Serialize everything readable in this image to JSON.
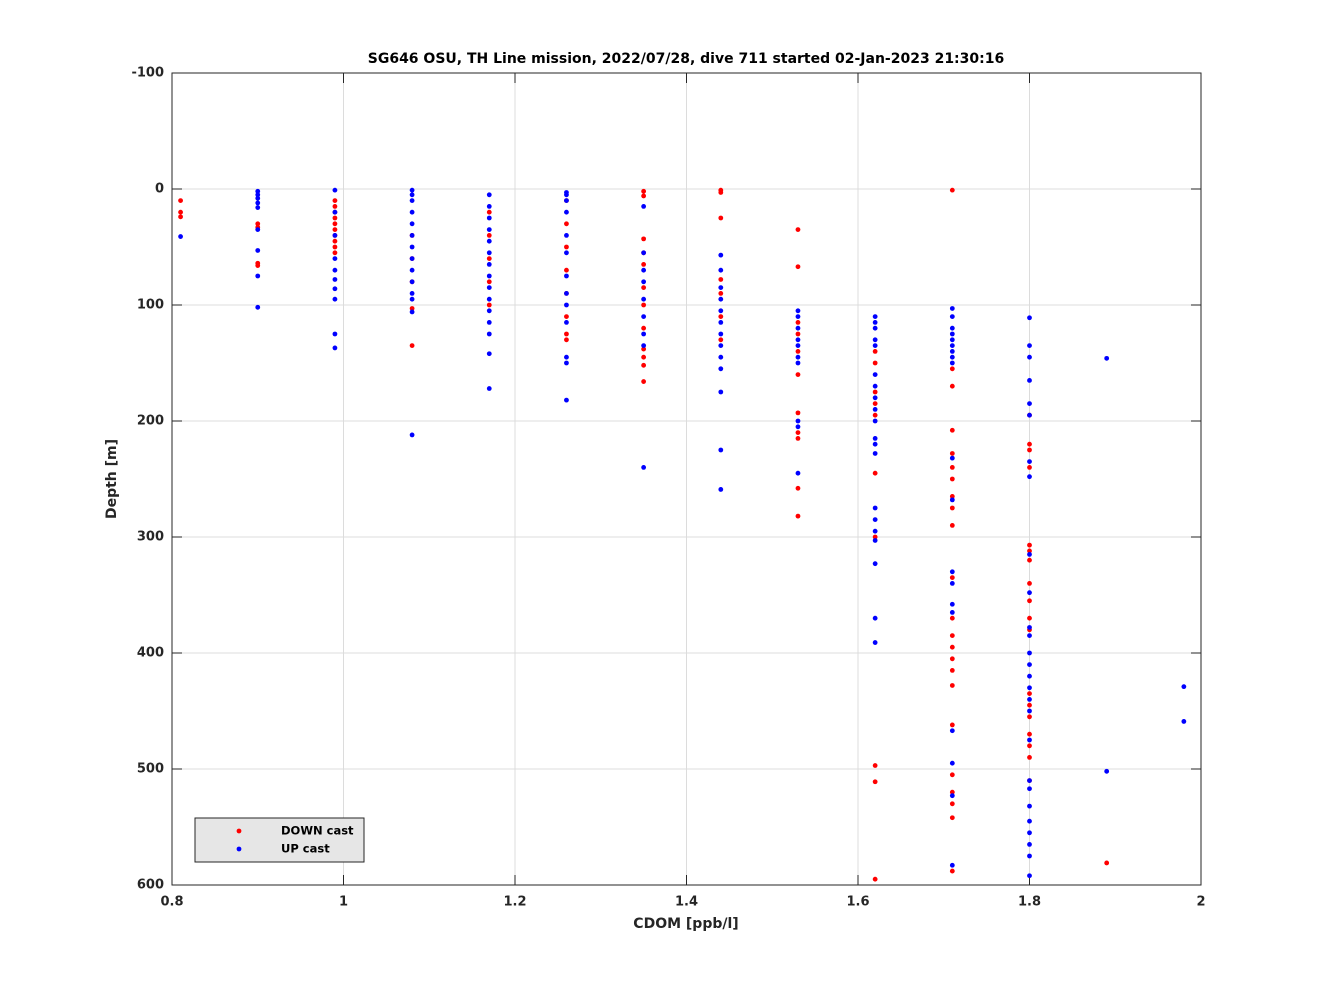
{
  "chart_data": {
    "type": "scatter",
    "title": "SG646 OSU, TH Line mission, 2022/07/28, dive 711 started 02-Jan-2023 21:30:16",
    "x_label": "CDOM [ppb/l]",
    "y_label": "Depth [m]",
    "xlim": [
      0.8,
      2
    ],
    "xticks": [
      0.8,
      1,
      1.2,
      1.4,
      1.6,
      1.8,
      2
    ],
    "ylim": [
      -100,
      600
    ],
    "yticks": [
      -100,
      0,
      100,
      200,
      300,
      400,
      500,
      600
    ],
    "y_reversed": true,
    "grid": true,
    "legend": "lower left",
    "series": [
      {
        "name": "DOWN cast",
        "color": "#ff0000",
        "x": [
          0.81,
          0.81,
          0.81,
          0.9,
          0.9,
          0.9,
          0.9,
          0.99,
          0.99,
          0.99,
          0.99,
          0.99,
          0.99,
          0.99,
          0.99,
          0.99,
          0.99,
          1.08,
          1.08,
          1.08,
          1.08,
          1.08,
          1.17,
          1.17,
          1.17,
          1.17,
          1.17,
          1.26,
          1.26,
          1.26,
          1.26,
          1.26,
          1.26,
          1.26,
          1.26,
          1.35,
          1.35,
          1.35,
          1.35,
          1.35,
          1.35,
          1.35,
          1.35,
          1.35,
          1.35,
          1.35,
          1.35,
          1.44,
          1.44,
          1.44,
          1.44,
          1.44,
          1.44,
          1.44,
          1.53,
          1.53,
          1.53,
          1.53,
          1.53,
          1.53,
          1.53,
          1.53,
          1.53,
          1.53,
          1.53,
          1.62,
          1.62,
          1.62,
          1.62,
          1.62,
          1.62,
          1.62,
          1.62,
          1.62,
          1.62,
          1.71,
          1.71,
          1.71,
          1.71,
          1.71,
          1.71,
          1.71,
          1.71,
          1.71,
          1.71,
          1.71,
          1.71,
          1.71,
          1.71,
          1.71,
          1.71,
          1.71,
          1.71,
          1.71,
          1.71,
          1.71,
          1.71,
          1.71,
          1.8,
          1.8,
          1.8,
          1.8,
          1.8,
          1.8,
          1.8,
          1.8,
          1.8,
          1.8,
          1.8,
          1.8,
          1.8,
          1.8,
          1.8,
          1.8,
          1.8,
          1.8,
          1.89
        ],
        "values": [
          10,
          20,
          24,
          30,
          33,
          64,
          66,
          10,
          15,
          20,
          25,
          30,
          35,
          40,
          45,
          50,
          55,
          40,
          60,
          80,
          103,
          135,
          20,
          40,
          60,
          80,
          100,
          10,
          30,
          50,
          70,
          90,
          110,
          125,
          130,
          2,
          6,
          43,
          55,
          65,
          85,
          100,
          120,
          138,
          145,
          152,
          166,
          1,
          3,
          25,
          78,
          90,
          110,
          130,
          35,
          67,
          115,
          125,
          140,
          160,
          193,
          210,
          215,
          258,
          282,
          140,
          150,
          175,
          185,
          195,
          245,
          300,
          497,
          511,
          595,
          1,
          155,
          170,
          208,
          228,
          240,
          250,
          265,
          275,
          290,
          335,
          370,
          385,
          395,
          405,
          415,
          428,
          462,
          505,
          520,
          530,
          542,
          588,
          195,
          220,
          225,
          240,
          307,
          312,
          320,
          340,
          355,
          370,
          380,
          435,
          445,
          455,
          470,
          480,
          490,
          510,
          581
        ]
      },
      {
        "name": "UP cast",
        "color": "#0000ff",
        "x": [
          0.81,
          0.9,
          0.9,
          0.9,
          0.9,
          0.9,
          0.9,
          0.9,
          0.9,
          0.9,
          0.99,
          0.99,
          0.99,
          0.99,
          0.99,
          0.99,
          0.99,
          0.99,
          0.99,
          0.99,
          1.08,
          1.08,
          1.08,
          1.08,
          1.08,
          1.08,
          1.08,
          1.08,
          1.08,
          1.08,
          1.08,
          1.08,
          1.08,
          1.08,
          1.17,
          1.17,
          1.17,
          1.17,
          1.17,
          1.17,
          1.17,
          1.17,
          1.17,
          1.17,
          1.17,
          1.17,
          1.17,
          1.17,
          1.17,
          1.26,
          1.26,
          1.26,
          1.26,
          1.26,
          1.26,
          1.26,
          1.26,
          1.26,
          1.26,
          1.26,
          1.26,
          1.26,
          1.35,
          1.35,
          1.35,
          1.35,
          1.35,
          1.35,
          1.35,
          1.35,
          1.35,
          1.44,
          1.44,
          1.44,
          1.44,
          1.44,
          1.44,
          1.44,
          1.44,
          1.44,
          1.44,
          1.44,
          1.44,
          1.44,
          1.53,
          1.53,
          1.53,
          1.53,
          1.53,
          1.53,
          1.53,
          1.53,
          1.53,
          1.53,
          1.62,
          1.62,
          1.62,
          1.62,
          1.62,
          1.62,
          1.62,
          1.62,
          1.62,
          1.62,
          1.62,
          1.62,
          1.62,
          1.62,
          1.62,
          1.62,
          1.62,
          1.62,
          1.62,
          1.62,
          1.71,
          1.71,
          1.71,
          1.71,
          1.71,
          1.71,
          1.71,
          1.71,
          1.71,
          1.71,
          1.71,
          1.71,
          1.71,
          1.71,
          1.71,
          1.71,
          1.71,
          1.71,
          1.71,
          1.8,
          1.8,
          1.8,
          1.8,
          1.8,
          1.8,
          1.8,
          1.8,
          1.8,
          1.8,
          1.8,
          1.8,
          1.8,
          1.8,
          1.8,
          1.8,
          1.8,
          1.8,
          1.8,
          1.8,
          1.8,
          1.8,
          1.8,
          1.8,
          1.8,
          1.8,
          1.8,
          1.89,
          1.89,
          1.98,
          1.98
        ],
        "values": [
          41,
          2,
          5,
          8,
          12,
          16,
          35,
          53,
          75,
          102,
          1,
          20,
          40,
          60,
          70,
          78,
          86,
          95,
          125,
          137,
          1,
          5,
          10,
          20,
          30,
          40,
          50,
          60,
          70,
          80,
          90,
          95,
          106,
          212,
          5,
          15,
          25,
          35,
          45,
          55,
          65,
          75,
          85,
          95,
          105,
          115,
          125,
          142,
          172,
          3,
          5,
          10,
          20,
          40,
          55,
          75,
          90,
          100,
          115,
          145,
          150,
          182,
          15,
          55,
          70,
          80,
          95,
          110,
          125,
          135,
          240,
          57,
          70,
          85,
          95,
          105,
          115,
          125,
          135,
          145,
          155,
          175,
          225,
          259,
          105,
          110,
          120,
          130,
          135,
          145,
          150,
          200,
          205,
          245,
          110,
          115,
          120,
          130,
          135,
          160,
          170,
          180,
          190,
          200,
          215,
          220,
          228,
          275,
          285,
          295,
          303,
          323,
          370,
          391,
          103,
          110,
          120,
          125,
          130,
          135,
          140,
          145,
          150,
          232,
          268,
          330,
          340,
          358,
          365,
          467,
          495,
          523,
          583,
          111,
          135,
          145,
          165,
          185,
          195,
          235,
          248,
          315,
          348,
          378,
          385,
          400,
          410,
          420,
          430,
          440,
          450,
          475,
          510,
          517,
          532,
          545,
          555,
          565,
          575,
          592,
          146,
          502,
          429,
          459
        ]
      }
    ]
  }
}
